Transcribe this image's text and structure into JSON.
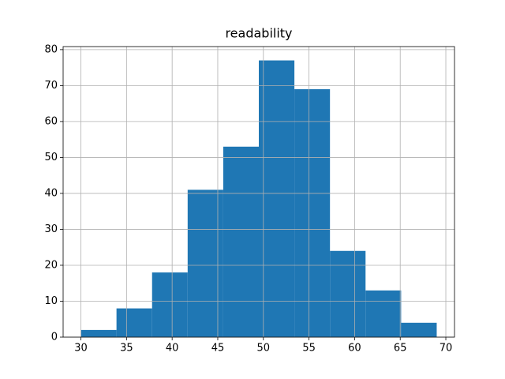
{
  "chart_data": {
    "type": "histogram",
    "title": "readability",
    "bins": [
      30,
      33.9,
      37.8,
      41.7,
      45.6,
      49.5,
      53.4,
      57.3,
      61.2,
      65.1,
      69.0
    ],
    "values": [
      2,
      8,
      18,
      41,
      53,
      77,
      69,
      24,
      13,
      4
    ],
    "color": "#1f77b4",
    "xlim": [
      28.05,
      70.95
    ],
    "xticks": [
      30,
      35,
      40,
      45,
      50,
      55,
      60,
      65,
      70
    ],
    "ylim": [
      0,
      80.85
    ],
    "yticks": [
      0,
      10,
      20,
      30,
      40,
      50,
      60,
      70,
      80
    ],
    "grid": true
  }
}
